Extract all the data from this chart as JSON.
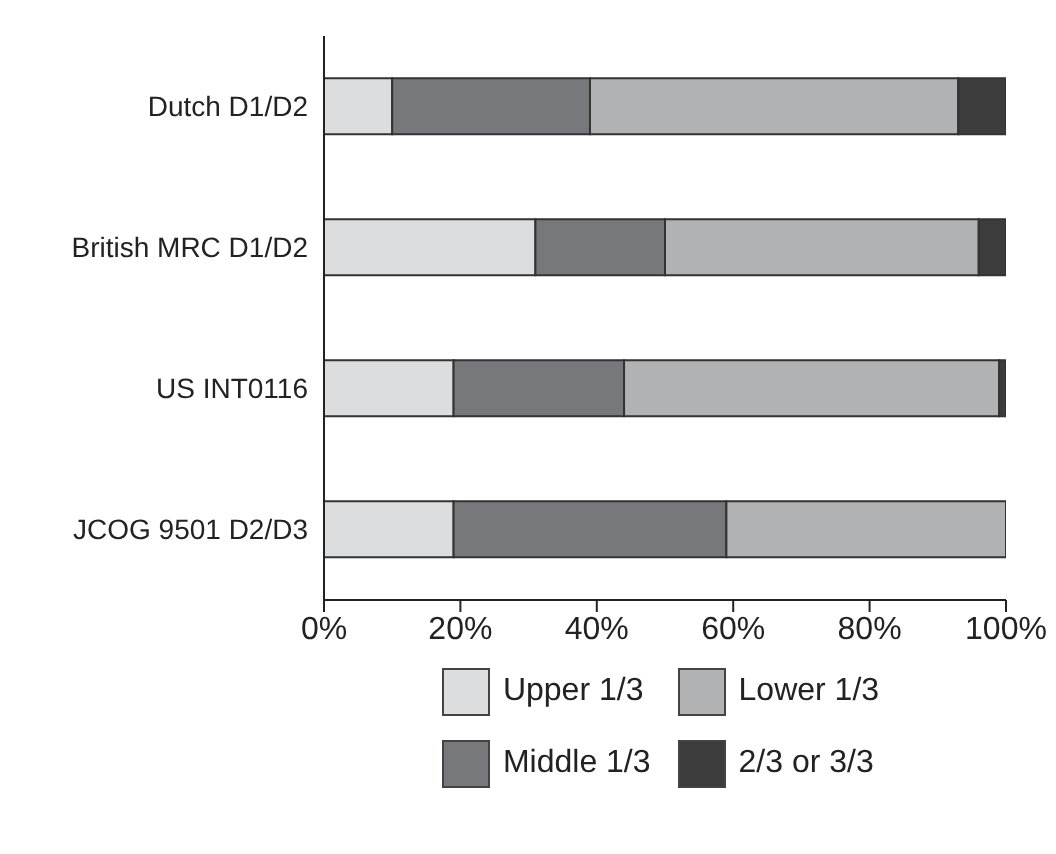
{
  "chart_data": {
    "type": "bar",
    "orientation": "horizontal",
    "stacked": true,
    "categories": [
      "Dutch D1/D2",
      "British MRC D1/D2",
      "US INT0116",
      "JCOG 9501 D2/D3"
    ],
    "series": [
      {
        "name": "Upper 1/3",
        "color": "#dcdddf",
        "values": [
          10,
          31,
          19,
          19
        ]
      },
      {
        "name": "Middle 1/3",
        "color": "#77787b",
        "values": [
          29,
          19,
          25,
          40
        ]
      },
      {
        "name": "Lower 1/3",
        "color": "#b1b2b4",
        "values": [
          54,
          46,
          55,
          41
        ]
      },
      {
        "name": "2/3 or 3/3",
        "color": "#3c3c3c",
        "values": [
          7,
          4,
          1,
          0
        ]
      }
    ],
    "xlim": [
      0,
      100
    ],
    "xticks": [
      {
        "value": 0,
        "label": "0%"
      },
      {
        "value": 20,
        "label": "20%"
      },
      {
        "value": 40,
        "label": "40%"
      },
      {
        "value": 60,
        "label": "60%"
      },
      {
        "value": 80,
        "label": "80%"
      },
      {
        "value": 100,
        "label": "100%"
      }
    ],
    "grid": false,
    "legend": "bottom"
  }
}
